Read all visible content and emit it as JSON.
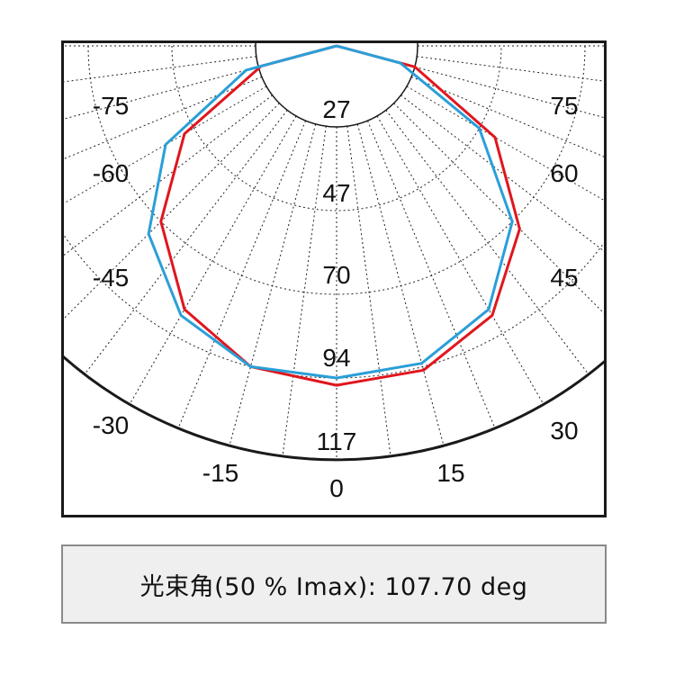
{
  "chart_data": {
    "type": "polar",
    "caption": "光束角(50 % Imax): 107.70 deg",
    "radial_ticks": [
      "27",
      "47",
      "70",
      "94",
      "117"
    ],
    "radial_values": [
      27,
      47,
      70,
      94,
      117
    ],
    "angle_labels_left": [
      "-75",
      "-60",
      "-45",
      "-30",
      "-15"
    ],
    "angle_labels_right": [
      "75",
      "60",
      "45",
      "30",
      "15"
    ],
    "angle_label_zero": "0",
    "grid": true,
    "series": [
      {
        "color": "#e0161e",
        "angles": [
          -90,
          -75,
          -60,
          -45,
          -30,
          -15,
          0,
          15,
          30,
          45,
          60,
          75,
          90
        ],
        "values": [
          0,
          26,
          50,
          70,
          86,
          94,
          96,
          95,
          88,
          73,
          52,
          27,
          0
        ]
      },
      {
        "color": "#2a9fd8",
        "angles": [
          -90,
          -75,
          -60,
          -45,
          -30,
          -15,
          0,
          15,
          30,
          45,
          60,
          75,
          90
        ],
        "values": [
          0,
          30,
          56,
          75,
          88,
          94,
          94,
          93,
          86,
          70,
          47,
          22,
          0
        ]
      }
    ]
  }
}
